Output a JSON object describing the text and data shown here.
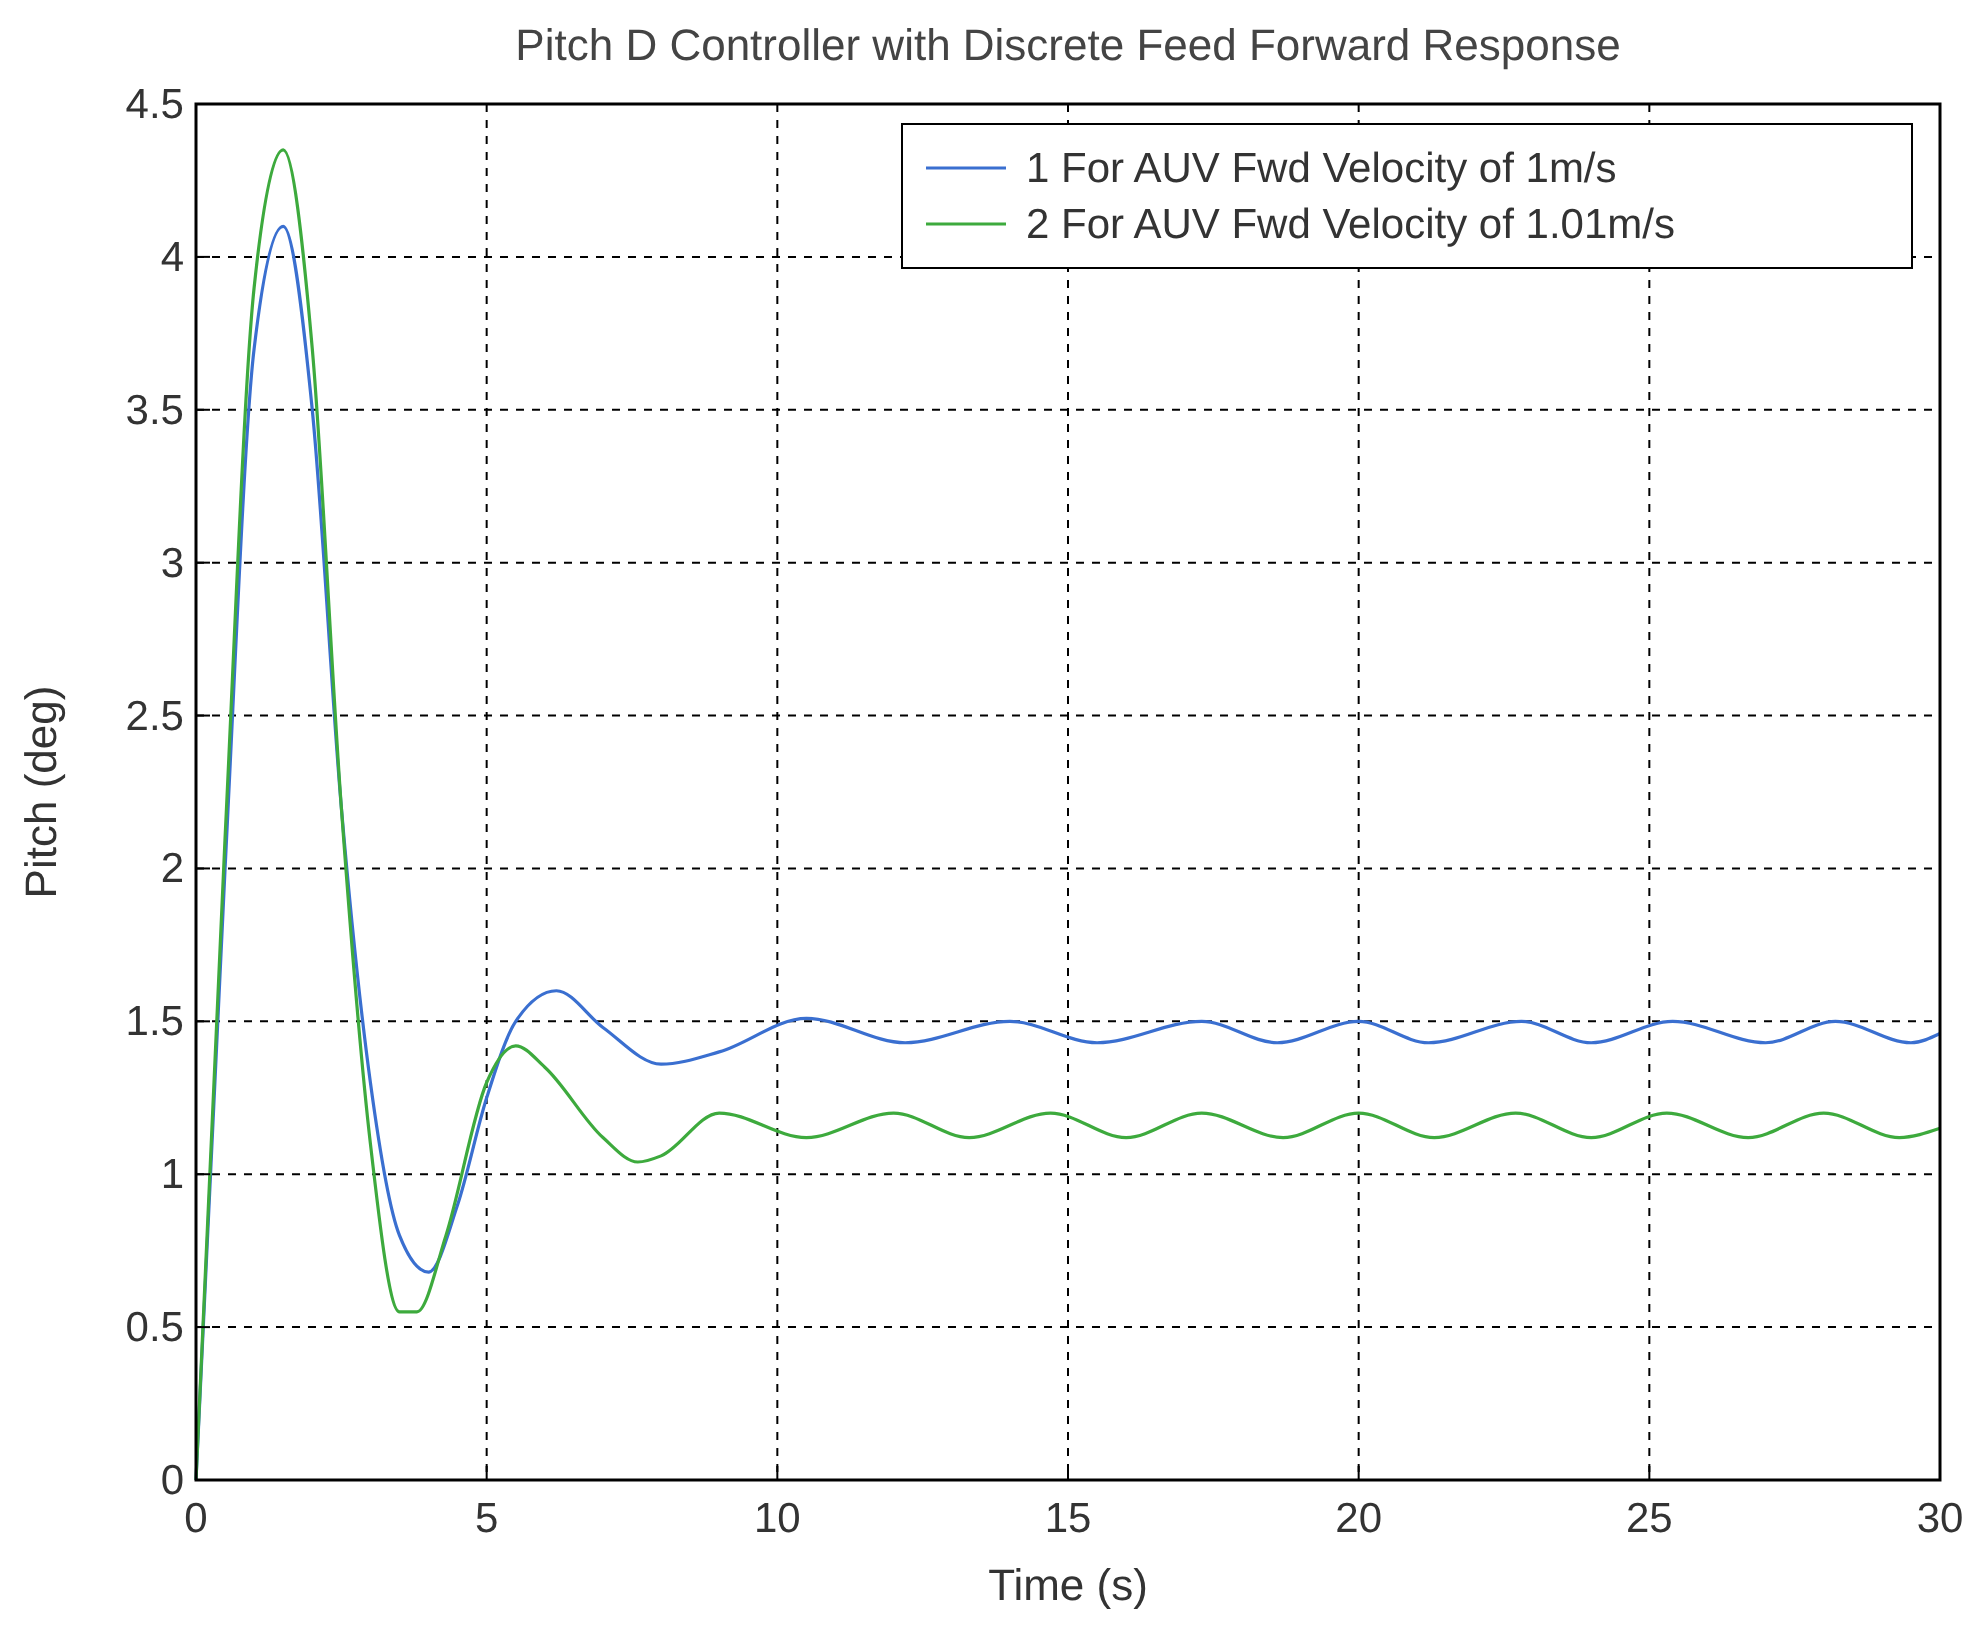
{
  "chart_data": {
    "type": "line",
    "title": "Pitch D Controller with Discrete Feed Forward Response",
    "xlabel": "Time (s)",
    "ylabel": "Pitch (deg)",
    "xlim": [
      0,
      30
    ],
    "xticks": [
      0,
      5,
      10,
      15,
      20,
      25,
      30
    ],
    "ylim": [
      0,
      4.5
    ],
    "yticks": [
      0,
      0.5,
      1,
      1.5,
      2,
      2.5,
      3,
      3.5,
      4,
      4.5
    ],
    "grid": true,
    "legend": "top right",
    "line_style": "solid",
    "series": [
      {
        "name": "1 For AUV Fwd Velocity of 1m/s",
        "color": "#3a6fd0",
        "x": [
          0,
          0.5,
          1,
          1.5,
          2,
          2.5,
          3,
          3.5,
          4,
          4.5,
          5,
          5.5,
          6.2,
          7,
          8,
          9,
          10.5,
          12.2,
          14,
          15.5,
          17.3,
          18.6,
          20,
          21.2,
          22.8,
          24,
          25.4,
          27,
          28.2,
          29.5,
          30
        ],
        "values": [
          0,
          2,
          3.7,
          4.1,
          3.5,
          2.2,
          1.3,
          0.8,
          0.68,
          0.9,
          1.25,
          1.5,
          1.6,
          1.48,
          1.36,
          1.4,
          1.51,
          1.43,
          1.5,
          1.43,
          1.5,
          1.43,
          1.5,
          1.43,
          1.5,
          1.43,
          1.5,
          1.43,
          1.5,
          1.43,
          1.46
        ]
      },
      {
        "name": "2 For AUV Fwd Velocity of 1.01m/s",
        "color": "#3daa3d",
        "x": [
          0,
          0.5,
          1,
          1.5,
          2,
          2.5,
          3,
          3.5,
          3.8,
          4.3,
          5,
          5.5,
          6,
          7,
          7.6,
          8,
          9,
          10.5,
          12,
          13.3,
          14.7,
          16,
          17.3,
          18.7,
          20,
          21.3,
          22.7,
          24,
          25.3,
          26.7,
          28,
          29.3,
          30
        ],
        "values": [
          0,
          2.1,
          3.9,
          4.35,
          3.7,
          2.2,
          1.1,
          0.55,
          0.55,
          0.8,
          1.3,
          1.42,
          1.35,
          1.12,
          1.04,
          1.06,
          1.2,
          1.12,
          1.2,
          1.12,
          1.2,
          1.12,
          1.2,
          1.12,
          1.2,
          1.12,
          1.2,
          1.12,
          1.2,
          1.12,
          1.2,
          1.12,
          1.15
        ]
      }
    ]
  }
}
